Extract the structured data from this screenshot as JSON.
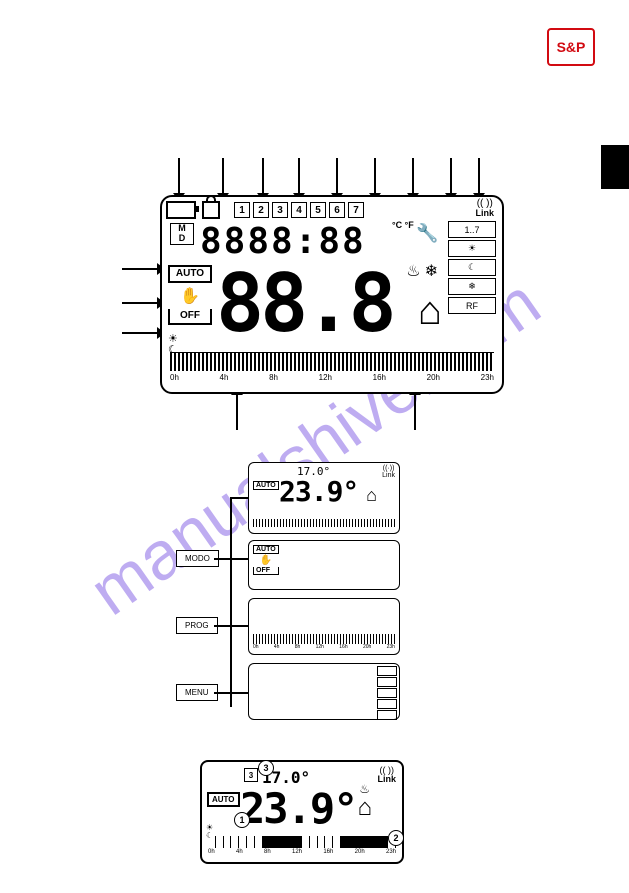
{
  "logo": {
    "text": "S&P"
  },
  "watermark": "manualshive.com",
  "arrows_top_x": [
    178,
    222,
    262,
    298,
    336,
    374,
    412,
    450,
    478
  ],
  "arrows_left_y": [
    268,
    302,
    332
  ],
  "arrows_bottom_x": [
    236,
    414
  ],
  "display1": {
    "days": [
      "1",
      "2",
      "3",
      "4",
      "5",
      "6",
      "7"
    ],
    "clock": "8888:88",
    "temp_units": "°C\n°F",
    "md_label": "M\nD",
    "auto_label": "AUTO",
    "off_label": "OFF",
    "hand_icon": "✋",
    "big_temp": "88.8",
    "heat_icon": "♨",
    "snow_icon": "❄",
    "house_icon": "⌂",
    "house_inner": "°C\n°F",
    "wrench_icon": "🔧",
    "antenna_icon": "(( ))",
    "link_label": "Link",
    "right_boxes": [
      "1..7",
      "☀",
      "☾",
      "❄",
      "RF"
    ],
    "timeline_labels": [
      "0h",
      "4h",
      "8h",
      "12h",
      "16h",
      "20h",
      "23h"
    ],
    "timeline_left_icons": "☀\n☾"
  },
  "section2": {
    "top_disp": {
      "set_temp": "17.0°",
      "main_temp": "23.9°",
      "auto": "AUTO"
    },
    "label_modo": "MODO",
    "label_prog": "PROG",
    "label_menu": "MENU",
    "modo_disp": {
      "auto": "AUTO",
      "hand": "✋",
      "off": "OFF"
    },
    "prog_disp": {
      "timeline_labels": [
        "0h",
        "4h",
        "8h",
        "12h",
        "16h",
        "20h",
        "23h"
      ]
    },
    "menu_disp": {
      "right_boxes": [
        "",
        "",
        "",
        "",
        ""
      ]
    }
  },
  "display5": {
    "day": "3",
    "set_temp": "17.0°",
    "main_temp": "23.9°",
    "auto": "AUTO",
    "antenna": "(( ))",
    "link": "Link",
    "house": "⌂",
    "timeline_labels": [
      "0h",
      "4h",
      "8h",
      "12h",
      "16h",
      "20h",
      "23h"
    ],
    "timeline_pattern": [
      0,
      0,
      0,
      0,
      0,
      0,
      0,
      1,
      1,
      1,
      1,
      1,
      0,
      0,
      0,
      0,
      0,
      1,
      1,
      1,
      1,
      1,
      1,
      0
    ],
    "callouts": {
      "c1": "1",
      "c2": "2",
      "c3": "3"
    },
    "heat_icon": "♨"
  }
}
